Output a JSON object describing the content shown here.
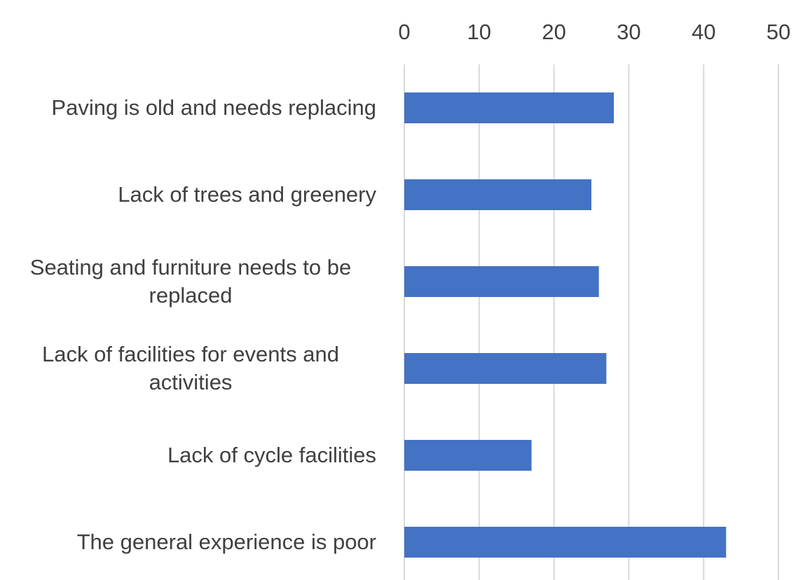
{
  "chart_data": {
    "type": "bar",
    "orientation": "horizontal",
    "categories": [
      "Paving is old and needs replacing",
      "Lack of trees and greenery",
      "Seating and furniture needs to be replaced",
      "Lack of facilities for events and activities",
      "Lack of cycle facilities",
      "The general experience is poor"
    ],
    "values": [
      28,
      25,
      26,
      27,
      17,
      43
    ],
    "color": "#4472c4",
    "xlim": [
      0,
      50
    ],
    "xticks": [
      0,
      10,
      20,
      30,
      40,
      50
    ],
    "grid": true,
    "axis_position": "top"
  }
}
